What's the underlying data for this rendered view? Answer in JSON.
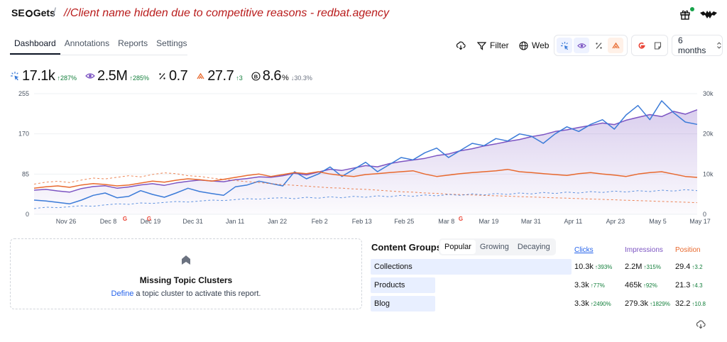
{
  "header": {
    "logo_text_a": "SE",
    "logo_text_b": "Gets",
    "client_note": "//Client name hidden due to competitive reasons - redbat.agency"
  },
  "tabs": [
    {
      "label": "Dashboard",
      "active": true
    },
    {
      "label": "Annotations",
      "active": false
    },
    {
      "label": "Reports",
      "active": false
    },
    {
      "label": "Settings",
      "active": false
    }
  ],
  "toolbar": {
    "filter_label": "Filter",
    "web_label": "Web",
    "range_label": "6 months"
  },
  "metrics": {
    "clicks": {
      "value": "17.1k",
      "delta": "287%"
    },
    "impressions": {
      "value": "2.5M",
      "delta": "285%"
    },
    "ctr": {
      "value": "0.7"
    },
    "position": {
      "value": "27.7",
      "delta": "3"
    },
    "brand": {
      "value": "8.6",
      "unit": "%",
      "delta": "30.3%"
    }
  },
  "colors": {
    "clicks": "#3b7bd8",
    "impressions": "#7c54c2",
    "position": "#e8692e",
    "ctr": "#e8692e",
    "delta_up": "#15803d",
    "accent_link": "#2563eb"
  },
  "chart_data": {
    "type": "line",
    "x_ticks": [
      "Nov 26",
      "Dec 8",
      "Dec 19",
      "Dec 31",
      "Jan 11",
      "Jan 22",
      "Feb 2",
      "Feb 13",
      "Feb 25",
      "Mar 8",
      "Mar 19",
      "Mar 31",
      "Apr 11",
      "Apr 23",
      "May 5",
      "May 17"
    ],
    "y_left_ticks": [
      "255",
      "170",
      "85",
      "0"
    ],
    "y_right_ticks": [
      "30k",
      "20k",
      "10k",
      "0"
    ],
    "ylim_left": [
      0,
      255
    ],
    "ylim_right": [
      0,
      30000
    ],
    "grid": true,
    "series": [
      {
        "key": "impressions",
        "axis": "right",
        "style": "solid-fill",
        "values": [
          6000,
          6200,
          5800,
          5500,
          6400,
          6900,
          7100,
          6500,
          6800,
          7300,
          7600,
          7200,
          7800,
          8200,
          8500,
          8300,
          8100,
          8600,
          8900,
          9300,
          9200,
          9600,
          10200,
          9800,
          10500,
          11200,
          10900,
          11500,
          12100,
          11800,
          12600,
          13100,
          13500,
          13900,
          14600,
          15000,
          15800,
          16300,
          17000,
          17500,
          18100,
          18600,
          19300,
          19800,
          20600,
          21000,
          21600,
          22100,
          22700,
          22300,
          23400,
          24100,
          24800,
          24300,
          25600,
          24900,
          26000
        ]
      },
      {
        "key": "clicks",
        "axis": "left",
        "style": "solid",
        "values": [
          30,
          28,
          25,
          22,
          30,
          40,
          45,
          35,
          38,
          50,
          42,
          36,
          45,
          55,
          48,
          44,
          40,
          58,
          62,
          70,
          65,
          60,
          90,
          75,
          85,
          100,
          80,
          95,
          110,
          90,
          105,
          120,
          115,
          130,
          140,
          120,
          135,
          150,
          145,
          160,
          155,
          170,
          165,
          150,
          170,
          185,
          175,
          190,
          200,
          180,
          210,
          230,
          200,
          240,
          215,
          195,
          190
        ]
      },
      {
        "key": "position",
        "axis": "left",
        "style": "solid",
        "values": [
          55,
          58,
          60,
          57,
          62,
          65,
          63,
          60,
          62,
          66,
          70,
          68,
          72,
          75,
          73,
          70,
          74,
          78,
          82,
          85,
          80,
          84,
          88,
          86,
          90,
          85,
          82,
          80,
          84,
          86,
          88,
          90,
          92,
          85,
          80,
          83,
          86,
          88,
          90,
          92,
          95,
          90,
          88,
          86,
          84,
          82,
          86,
          88,
          85,
          83,
          80,
          85,
          88,
          90,
          85,
          80,
          78
        ]
      },
      {
        "key": "impressions_prev",
        "axis": "right",
        "style": "dashed",
        "values": [
          7500,
          8000,
          8200,
          7900,
          8500,
          9000,
          8800,
          9200,
          9600,
          9300,
          9900,
          10300,
          10100,
          9600,
          9400,
          9000,
          8700,
          8400,
          8100,
          7900,
          7600,
          7400,
          7200,
          7000,
          6800,
          6600,
          6500,
          6300,
          6200,
          6000,
          5800,
          5600,
          5500,
          5300,
          5200,
          5000,
          4900,
          4800,
          4700,
          4600,
          4500,
          4400,
          4300,
          4200,
          4100,
          4000,
          3900,
          3800,
          3700,
          3600,
          3500,
          3400,
          3300,
          3200,
          3100,
          3000,
          2900
        ]
      },
      {
        "key": "clicks_prev",
        "axis": "left",
        "style": "dashed",
        "values": [
          12,
          15,
          14,
          16,
          18,
          17,
          20,
          22,
          21,
          24,
          23,
          25,
          27,
          26,
          28,
          30,
          29,
          31,
          33,
          32,
          34,
          35,
          33,
          36,
          34,
          37,
          35,
          38,
          36,
          39,
          37,
          40,
          38,
          41,
          39,
          42,
          40,
          43,
          41,
          44,
          42,
          45,
          43,
          46,
          44,
          47,
          45,
          48,
          46,
          49,
          47,
          50,
          48,
          51,
          49,
          52,
          50
        ]
      }
    ]
  },
  "topic_clusters": {
    "title": "Missing Topic Clusters",
    "link_text": "Define",
    "rest_text": " a topic cluster to activate this report."
  },
  "content_groups": {
    "title": "Content Groups",
    "tabs": [
      {
        "label": "Popular",
        "active": true
      },
      {
        "label": "Growing",
        "active": false
      },
      {
        "label": "Decaying",
        "active": false
      }
    ],
    "columns": {
      "clicks": "Clicks",
      "impressions": "Impressions",
      "position": "Position"
    },
    "rows": [
      {
        "name": "Collections",
        "bar": 1.0,
        "clicks": "10.3k",
        "clicks_delta": "393%",
        "impressions": "2.2M",
        "impressions_delta": "315%",
        "position": "29.4",
        "position_delta": "3.2"
      },
      {
        "name": "Products",
        "bar": 0.32,
        "clicks": "3.3k",
        "clicks_delta": "77%",
        "impressions": "465k",
        "impressions_delta": "92%",
        "position": "21.3",
        "position_delta": "4.3"
      },
      {
        "name": "Blog",
        "bar": 0.32,
        "clicks": "3.3k",
        "clicks_delta": "2490%",
        "impressions": "279.3k",
        "impressions_delta": "1829%",
        "position": "32.2",
        "position_delta": "10.8"
      }
    ]
  }
}
